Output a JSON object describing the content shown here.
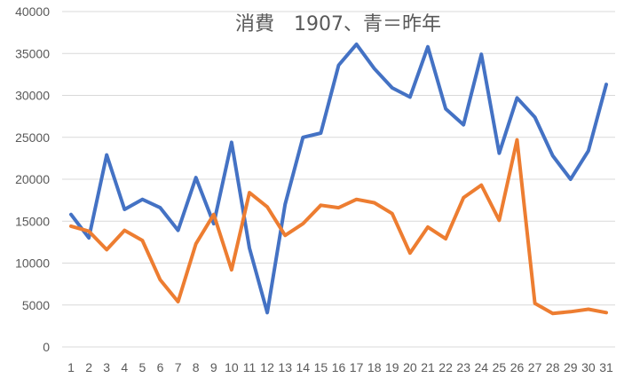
{
  "chart_data": {
    "type": "line",
    "title": "消費　1907、青＝昨年",
    "xlabel": "",
    "ylabel": "",
    "ylim": [
      0,
      40000
    ],
    "yticks": [
      0,
      5000,
      10000,
      15000,
      20000,
      25000,
      30000,
      35000,
      40000
    ],
    "grid": true,
    "legend": "none",
    "categories": [
      "1",
      "2",
      "3",
      "4",
      "5",
      "6",
      "7",
      "8",
      "9",
      "10",
      "11",
      "12",
      "13",
      "14",
      "15",
      "16",
      "17",
      "18",
      "19",
      "20",
      "21",
      "22",
      "23",
      "24",
      "25",
      "26",
      "27",
      "28",
      "29",
      "30",
      "31"
    ],
    "series": [
      {
        "color": "#4472c4",
        "values": [
          15800,
          13000,
          22900,
          16400,
          17600,
          16600,
          13900,
          20200,
          14700,
          24400,
          11800,
          4100,
          17000,
          25000,
          25500,
          33600,
          36100,
          33200,
          30900,
          29800,
          35800,
          28400,
          26500,
          34900,
          23100,
          29700,
          27400,
          22800,
          20000,
          23400,
          31300
        ]
      },
      {
        "color": "#ed7d31",
        "values": [
          14400,
          13800,
          11600,
          13900,
          12700,
          8000,
          5400,
          12300,
          15800,
          9200,
          18400,
          16700,
          13300,
          14700,
          16900,
          16600,
          17600,
          17200,
          15900,
          11200,
          14300,
          12900,
          17800,
          19300,
          15100,
          24700,
          5200,
          4000,
          4200,
          4500,
          4100
        ]
      }
    ]
  }
}
